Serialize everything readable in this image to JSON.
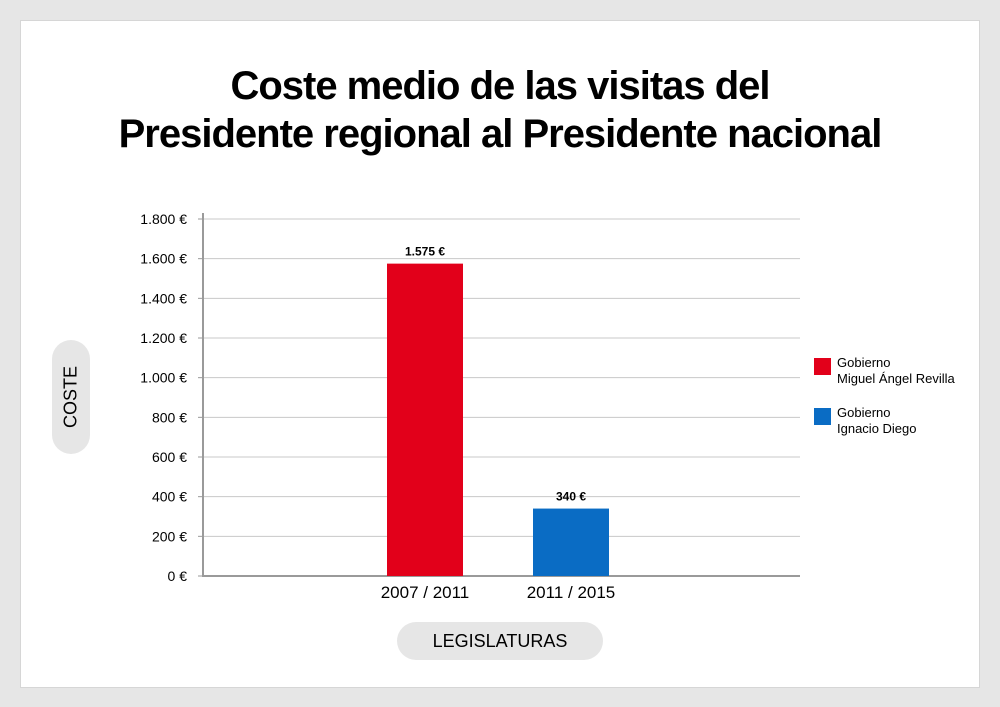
{
  "title": {
    "line1": "Coste medio de las visitas del",
    "line2": "Presidente regional al Presidente nacional"
  },
  "chart_data": {
    "type": "bar",
    "categories": [
      "2007 / 2011",
      "2011 / 2015"
    ],
    "values": [
      1575,
      340
    ],
    "value_labels": [
      "1.575 €",
      "340 €"
    ],
    "colors": [
      "#e2001a",
      "#0a6cc4"
    ],
    "ylabel": "COSTE",
    "xlabel": "LEGISLATURAS",
    "ylim": [
      0,
      1800
    ],
    "yticks": [
      0,
      200,
      400,
      600,
      800,
      1000,
      1200,
      1400,
      1600,
      1800
    ],
    "ytick_labels": [
      "0 €",
      "200 €",
      "400 €",
      "600 €",
      "800 €",
      "1.000 €",
      "1.200 €",
      "1.400 €",
      "1.600 €",
      "1.800 €"
    ],
    "grid": true,
    "legend_position": "right",
    "legend": [
      {
        "label": "Gobierno\nMiguel Ángel Revilla",
        "color": "#e2001a"
      },
      {
        "label": "Gobierno\nIgnacio Diego",
        "color": "#0a6cc4"
      }
    ]
  }
}
